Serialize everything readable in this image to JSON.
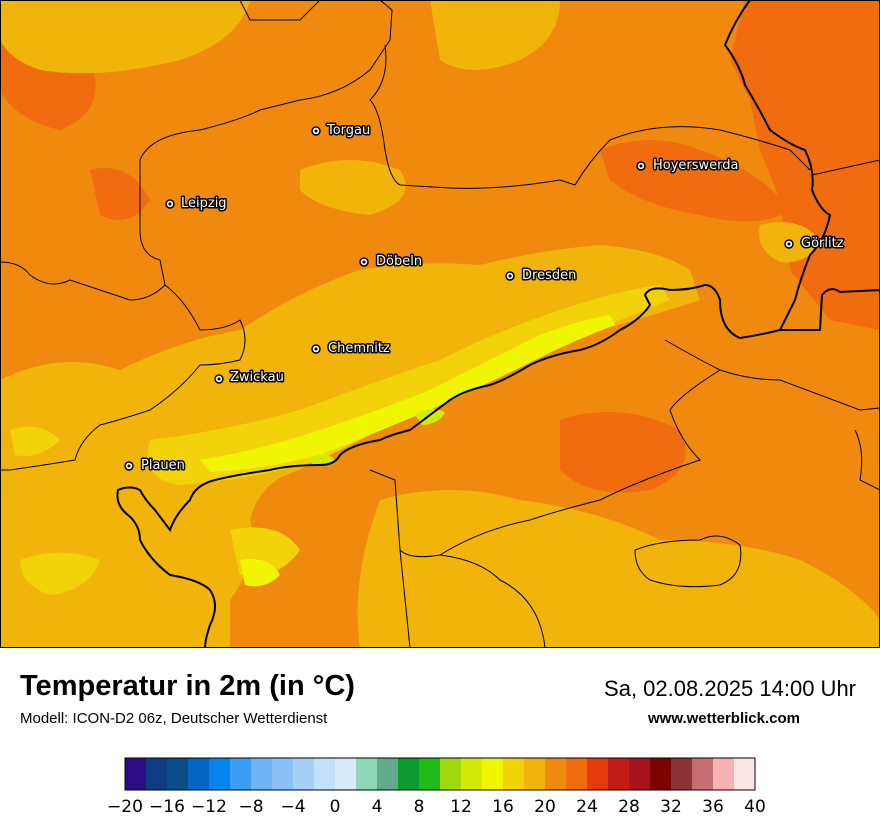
{
  "map": {
    "title": "Temperatur in 2m (in °C)",
    "model": "Modell: ICON-D2 06z, Deutscher Wetterdienst",
    "datetime": "Sa, 02.08.2025 14:00 Uhr",
    "website": "www.wetterblick.com",
    "cities": [
      {
        "name": "Torgau"
      },
      {
        "name": "Hoyerswerda"
      },
      {
        "name": "Leipzig"
      },
      {
        "name": "Görlitz"
      },
      {
        "name": "Döbeln"
      },
      {
        "name": "Dresden"
      },
      {
        "name": "Chemnitz"
      },
      {
        "name": "Zwickau"
      },
      {
        "name": "Plauen"
      }
    ]
  },
  "legend": {
    "unit": "°C",
    "range": [
      -20,
      40
    ],
    "step": 2,
    "colors": [
      "#2d0d85",
      "#0e3c84",
      "#0b4c8b",
      "#0565c0",
      "#0783ed",
      "#3c9df4",
      "#70b6f7",
      "#8ac2f7",
      "#a7d0f7",
      "#c3e1fa",
      "#d8ebfa",
      "#8fd6b9",
      "#61ab8b",
      "#0d9a2e",
      "#1fbb1a",
      "#a0d90b",
      "#d2ea05",
      "#f0f502",
      "#f2d309",
      "#f1b40b",
      "#f08a0f",
      "#f06c0e",
      "#e63a0d",
      "#c11c16",
      "#a5141c",
      "#7c0101",
      "#8b3337",
      "#c66f72",
      "#f8b2b2",
      "#fde4e6"
    ],
    "tick_labels": [
      "−20",
      "−16",
      "−12",
      "−8",
      "−4",
      "0",
      "4",
      "8",
      "12",
      "16",
      "20",
      "24",
      "28",
      "32",
      "36",
      "40"
    ]
  }
}
